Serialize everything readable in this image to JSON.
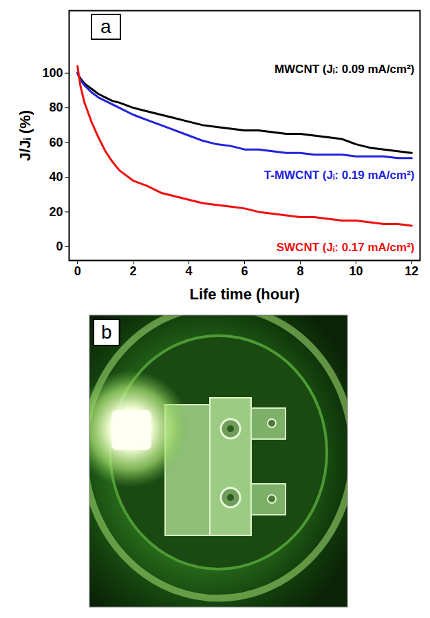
{
  "chart_data": {
    "type": "line",
    "panel_label": "a",
    "x_label": "Life time (hour)",
    "y_label": "J/Jᵢ (%)",
    "x": [
      0,
      0.1,
      0.25,
      0.5,
      0.75,
      1,
      1.25,
      1.5,
      2,
      2.5,
      3,
      3.5,
      4,
      4.5,
      5,
      5.5,
      6,
      6.5,
      7,
      7.5,
      8,
      8.5,
      9,
      9.5,
      10,
      10.5,
      11,
      11.5,
      12
    ],
    "xlim": [
      -0.3,
      12.3
    ],
    "xticks": [
      0,
      2,
      4,
      6,
      8,
      10,
      12
    ],
    "ylim": [
      -8,
      136
    ],
    "yticks": [
      0,
      20,
      40,
      60,
      80,
      100
    ],
    "series": [
      {
        "name": "MWCNT (Jᵢ: 0.09 mA/cm²)",
        "color": "#000000",
        "values": [
          100,
          97,
          94,
          91,
          88,
          86,
          84,
          83,
          80,
          78,
          76,
          74,
          72,
          70,
          69,
          68,
          67,
          67,
          66,
          65,
          65,
          64,
          63,
          62,
          59,
          57,
          56,
          55,
          54
        ]
      },
      {
        "name": "T-MWCNT (Jᵢ: 0.19 mA/cm²)",
        "color": "#2222dd",
        "values": [
          100,
          96,
          93,
          89,
          86,
          84,
          82,
          80,
          76,
          73,
          70,
          67,
          64,
          61,
          59,
          58,
          56,
          56,
          55,
          54,
          54,
          53,
          53,
          53,
          52,
          52,
          52,
          51,
          51
        ]
      },
      {
        "name": "SWCNT (Jᵢ: 0.17 mA/cm²)",
        "color": "#ee1111",
        "values": [
          104,
          93,
          83,
          72,
          63,
          55,
          49,
          44,
          38,
          35,
          31,
          29,
          27,
          25,
          24,
          23,
          22,
          20,
          19,
          18,
          17,
          17,
          16,
          15,
          15,
          14,
          13,
          13,
          12
        ]
      }
    ]
  },
  "photo": {
    "panel_label": "b"
  }
}
